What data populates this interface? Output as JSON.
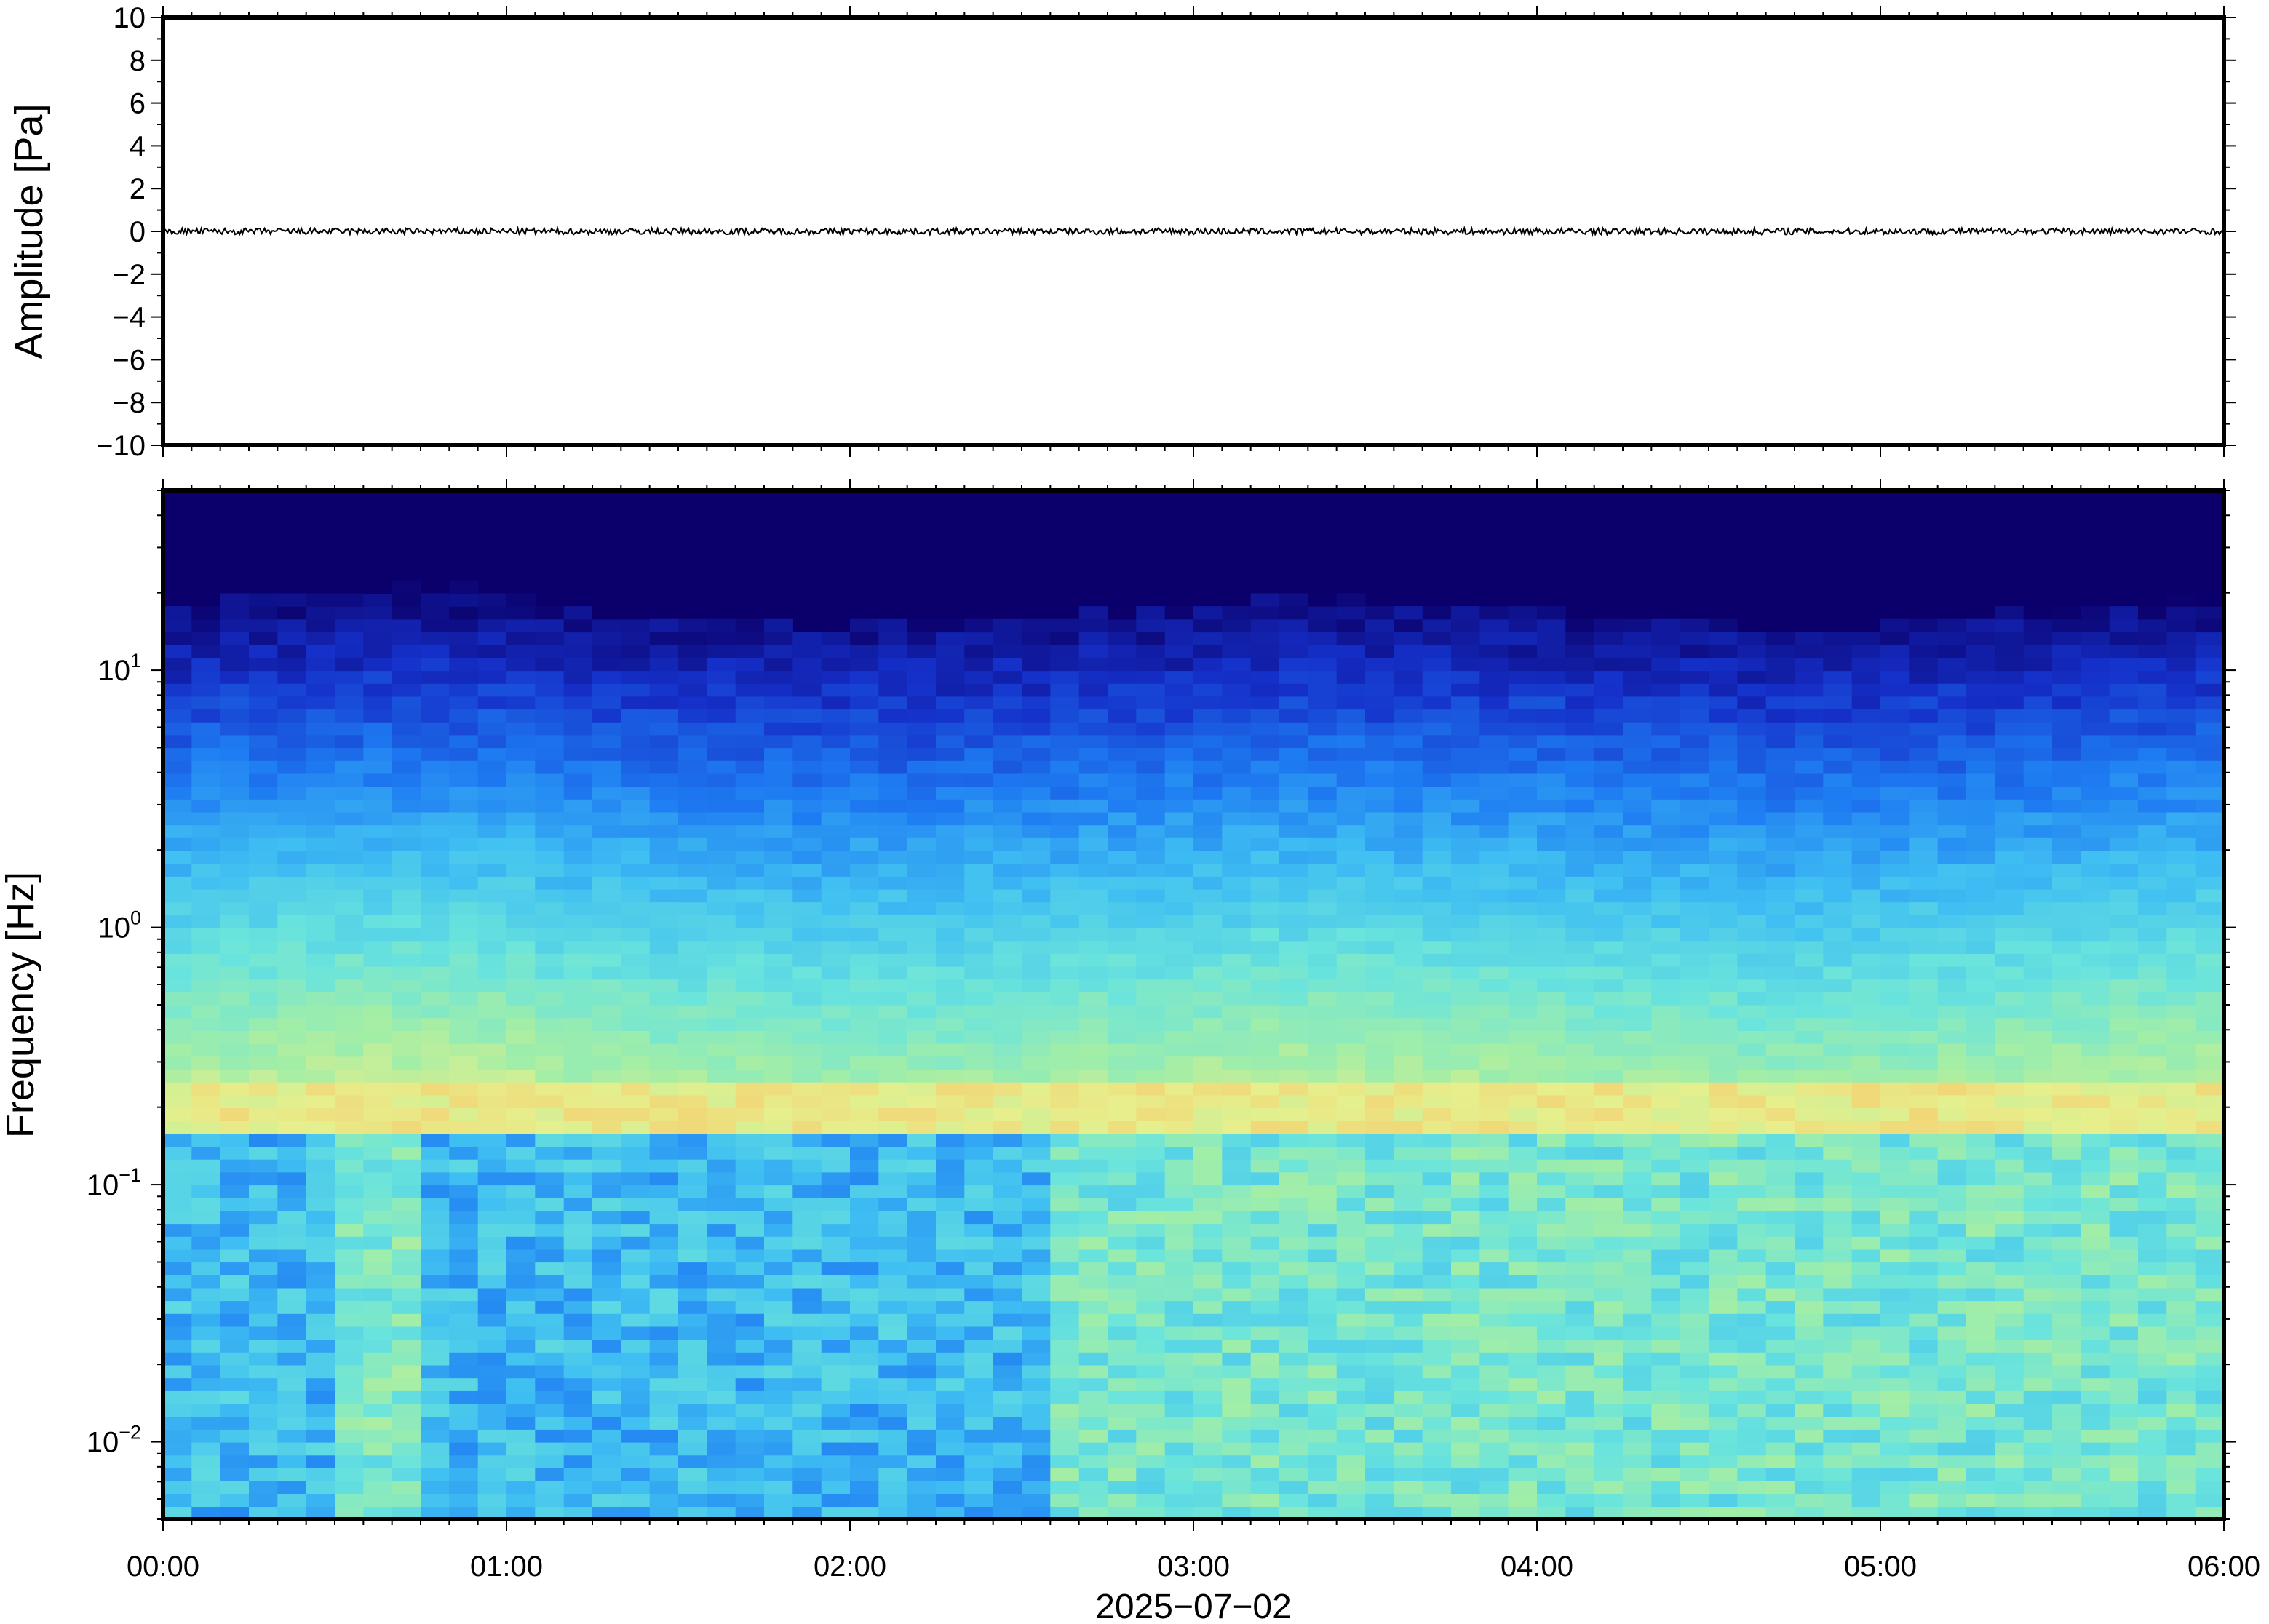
{
  "chart_data": [
    {
      "type": "line",
      "ylabel": "Amplitude [Pa]",
      "ylim": [
        -10,
        10
      ],
      "yticks": [
        "10",
        "8",
        "6",
        "4",
        "2",
        "0",
        "−2",
        "−4",
        "−6",
        "−8",
        "−10"
      ],
      "xlim": [
        "00:00",
        "06:00"
      ],
      "series": [
        {
          "values_description_free": true,
          "y_mean": 0,
          "y_amplitude_max": 0.15,
          "color": "#000000"
        }
      ]
    },
    {
      "type": "heatmap",
      "ylabel": "Frequency [Hz]",
      "yscale": "log",
      "ylim": [
        0.005,
        50
      ],
      "yticks": [
        {
          "base": "10",
          "exp": "1",
          "value": 10
        },
        {
          "base": "10",
          "exp": "0",
          "value": 1
        },
        {
          "base": "10",
          "exp": "−1",
          "value": 0.1
        },
        {
          "base": "10",
          "exp": "−2",
          "value": 0.01
        }
      ],
      "xlabel": "2025−07−02",
      "xticks": [
        "00:00",
        "01:00",
        "02:00",
        "03:00",
        "04:00",
        "05:00",
        "06:00"
      ],
      "colormap": [
        "#0b006b",
        "#1530c9",
        "#1e7cf2",
        "#3fbff2",
        "#6ae4dc",
        "#a3eea6",
        "#e6ef8c",
        "#f7c86b"
      ],
      "features": {
        "high_band_hz": [
          0.15,
          0.25
        ],
        "noise_floor_top_hz": 10
      }
    }
  ]
}
